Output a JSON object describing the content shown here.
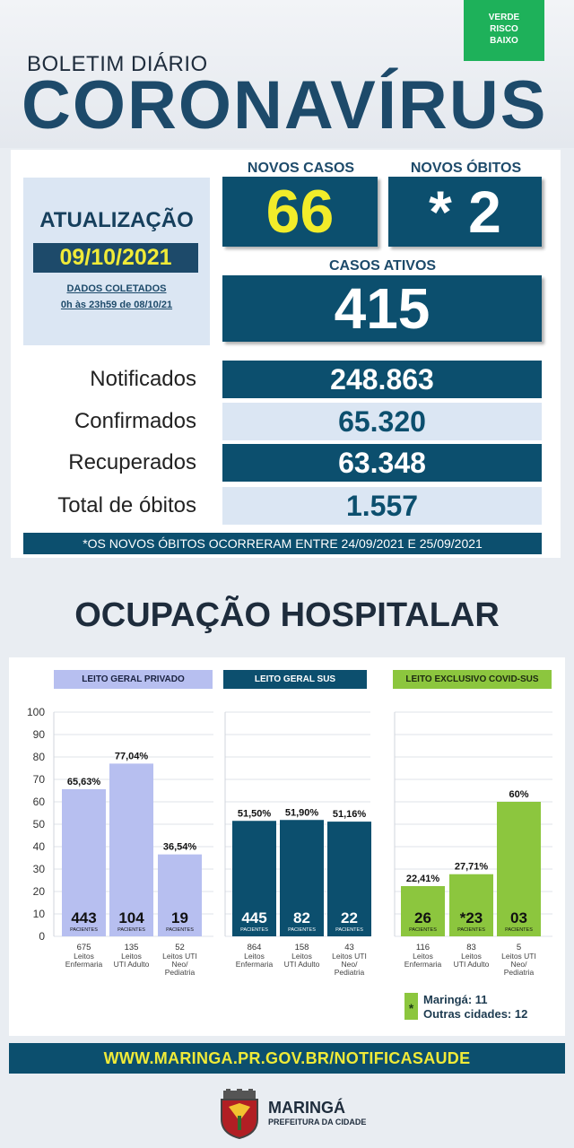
{
  "header": {
    "risk_badge": [
      "VERDE",
      "RISCO",
      "BAIXO"
    ],
    "subtitle": "BOLETIM DIÁRIO",
    "title": "CORONAVÍRUS"
  },
  "update": {
    "label": "ATUALIZAÇÃO",
    "date": "09/10/2021",
    "note_line1": "DADOS COLETADOS",
    "note_line2": "0h às 23h59 de 08/10/21"
  },
  "kpis": {
    "new_cases_label": "NOVOS CASOS",
    "new_cases_value": "66",
    "new_deaths_label": "NOVOS ÓBITOS",
    "new_deaths_value": "* 2",
    "active_cases_label": "CASOS ATIVOS",
    "active_cases_value": "415"
  },
  "stats": [
    {
      "label": "Notificados",
      "value": "248.863"
    },
    {
      "label": "Confirmados",
      "value": "65.320"
    },
    {
      "label": "Recuperados",
      "value": "63.348"
    },
    {
      "label": "Total de óbitos",
      "value": "1.557"
    }
  ],
  "footnote": "*OS NOVOS ÓBITOS OCORRERAM ENTRE 24/09/2021 E 25/09/2021",
  "hospital_title": "OCUPAÇÃO HOSPITALAR",
  "colors": {
    "navy": "#0c4f6e",
    "lavender": "#b7bff0",
    "green": "#8cc63e",
    "yellow": "#f0ea38",
    "risk_green": "#1eb15a"
  },
  "chart_data": {
    "type": "bar",
    "ylim": [
      0,
      100
    ],
    "y_ticks": [
      0,
      10,
      20,
      30,
      40,
      50,
      60,
      70,
      80,
      90,
      100
    ],
    "grid": true,
    "groups": [
      {
        "name": "LEITO GERAL PRIVADO",
        "color": "#b7bff0",
        "bars": [
          {
            "value": 65.63,
            "label": "65,63%",
            "patients": "443",
            "beds": "675",
            "category": [
              "Leitos",
              "Enfermaria"
            ]
          },
          {
            "value": 77.04,
            "label": "77,04%",
            "patients": "104",
            "beds": "135",
            "category": [
              "Leitos",
              "UTI Adulto"
            ]
          },
          {
            "value": 36.54,
            "label": "36,54%",
            "patients": "19",
            "beds": "52",
            "category": [
              "Leitos UTI",
              "Neo/",
              "Pediatria"
            ]
          }
        ]
      },
      {
        "name": "LEITO GERAL SUS",
        "color": "#0c4f6e",
        "bars": [
          {
            "value": 51.5,
            "label": "51,50%",
            "patients": "445",
            "beds": "864",
            "category": [
              "Leitos",
              "Enfermaria"
            ]
          },
          {
            "value": 51.9,
            "label": "51,90%",
            "patients": "82",
            "beds": "158",
            "category": [
              "Leitos",
              "UTI Adulto"
            ]
          },
          {
            "value": 51.16,
            "label": "51,16%",
            "patients": "22",
            "beds": "43",
            "category": [
              "Leitos UTI",
              "Neo/",
              "Pediatria"
            ]
          }
        ]
      },
      {
        "name": "LEITO EXCLUSIVO COVID-SUS",
        "color": "#8cc63e",
        "bars": [
          {
            "value": 22.41,
            "label": "22,41%",
            "patients": "26",
            "beds": "116",
            "category": [
              "Leitos",
              "Enfermaria"
            ]
          },
          {
            "value": 27.71,
            "label": "27,71%",
            "patients": "*23",
            "beds": "83",
            "category": [
              "Leitos",
              "UTI Adulto"
            ]
          },
          {
            "value": 60,
            "label": "60%",
            "patients": "03",
            "beds": "5",
            "category": [
              "Leitos UTI",
              "Neo/",
              "Pediatria"
            ]
          }
        ]
      }
    ],
    "patients_caption": "PACIENTES"
  },
  "legend": {
    "symbol": "*",
    "line1": "Maringá: 11",
    "line2": "Outras cidades: 12"
  },
  "footer": {
    "url": "WWW.MARINGA.PR.GOV.BR/NOTIFICASAUDE",
    "city": "MARINGÁ",
    "org": "PREFEITURA DA CIDADE",
    "logo": "city-coat-of-arms"
  }
}
